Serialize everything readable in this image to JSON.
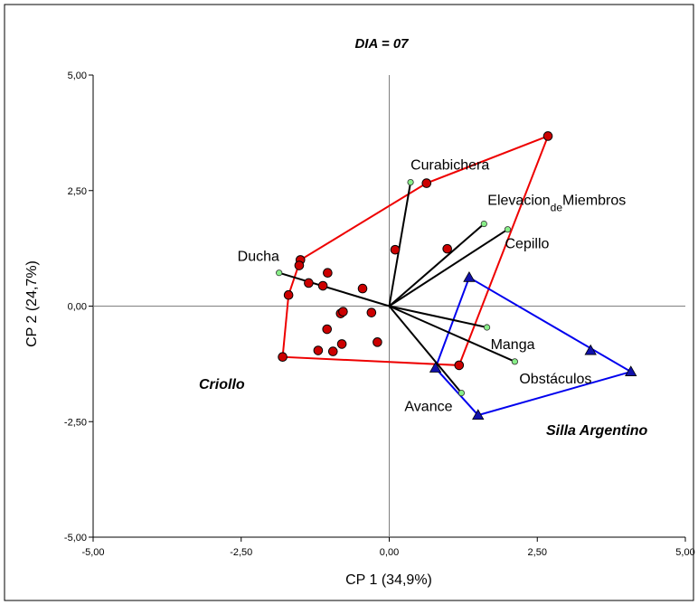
{
  "chart_data": {
    "type": "scatter",
    "title": "DIA = 07",
    "xlabel": "CP 1 (34,9%)",
    "ylabel": "CP 2 (24,7%)",
    "xlim": [
      -5,
      5
    ],
    "ylim": [
      -5,
      5
    ],
    "xticks": [
      "-5,00",
      "-2,50",
      "0,00",
      "2,50",
      "5,00"
    ],
    "yticks": [
      "5,00",
      "2,50",
      "0,00",
      "-2,50",
      "-5,00"
    ],
    "grid": false,
    "reference_lines": "x=0, y=0",
    "groups": [
      {
        "name": "Criollo",
        "marker": "circle",
        "color": "#cc0000",
        "hull_color": "#ee0000",
        "points": [
          [
            2.68,
            3.68
          ],
          [
            0.63,
            2.66
          ],
          [
            0.1,
            1.22
          ],
          [
            0.98,
            1.24
          ],
          [
            -1.5,
            1.0
          ],
          [
            -1.52,
            0.88
          ],
          [
            -1.04,
            0.72
          ],
          [
            -1.36,
            0.5
          ],
          [
            -1.12,
            0.44
          ],
          [
            -0.45,
            0.38
          ],
          [
            -1.7,
            0.24
          ],
          [
            -0.82,
            -0.16
          ],
          [
            -0.78,
            -0.12
          ],
          [
            -0.3,
            -0.14
          ],
          [
            -1.05,
            -0.5
          ],
          [
            -0.2,
            -0.78
          ],
          [
            -0.8,
            -0.82
          ],
          [
            -1.2,
            -0.96
          ],
          [
            -0.95,
            -0.98
          ],
          [
            -1.8,
            -1.1
          ],
          [
            1.18,
            -1.28
          ]
        ],
        "hull": [
          [
            2.68,
            3.68
          ],
          [
            0.63,
            2.66
          ],
          [
            -1.5,
            1.0
          ],
          [
            -1.7,
            0.24
          ],
          [
            -1.8,
            -1.1
          ],
          [
            1.18,
            -1.28
          ]
        ]
      },
      {
        "name": "Silla Argentino",
        "marker": "triangle",
        "color": "#1111aa",
        "hull_color": "#0000ee",
        "points": [
          [
            1.35,
            0.62
          ],
          [
            3.4,
            -0.96
          ],
          [
            4.08,
            -1.42
          ],
          [
            0.78,
            -1.34
          ],
          [
            1.5,
            -2.36
          ]
        ],
        "hull": [
          [
            1.35,
            0.62
          ],
          [
            4.08,
            -1.42
          ],
          [
            1.5,
            -2.36
          ],
          [
            0.78,
            -1.34
          ]
        ]
      }
    ],
    "vectors": [
      {
        "name": "Curabichera",
        "x": 0.36,
        "y": 2.68
      },
      {
        "name": "Elevacion",
        "sub": "de",
        "rest": "Miembros",
        "x": 1.6,
        "y": 1.78
      },
      {
        "name": "Cepillo",
        "x": 2.0,
        "y": 1.66
      },
      {
        "name": "Ducha",
        "x": -1.86,
        "y": 0.72
      },
      {
        "name": "Manga",
        "x": 1.65,
        "y": -0.46
      },
      {
        "name": "Obstáculos",
        "x": 2.12,
        "y": -1.2
      },
      {
        "name": "Avance",
        "x": 1.22,
        "y": -1.88
      }
    ],
    "group_labels": [
      "Criollo",
      "Silla Argentino"
    ],
    "colors": {
      "vector": "#000000",
      "vector_tip": "#88ee88",
      "axis_line": "#808080"
    }
  }
}
